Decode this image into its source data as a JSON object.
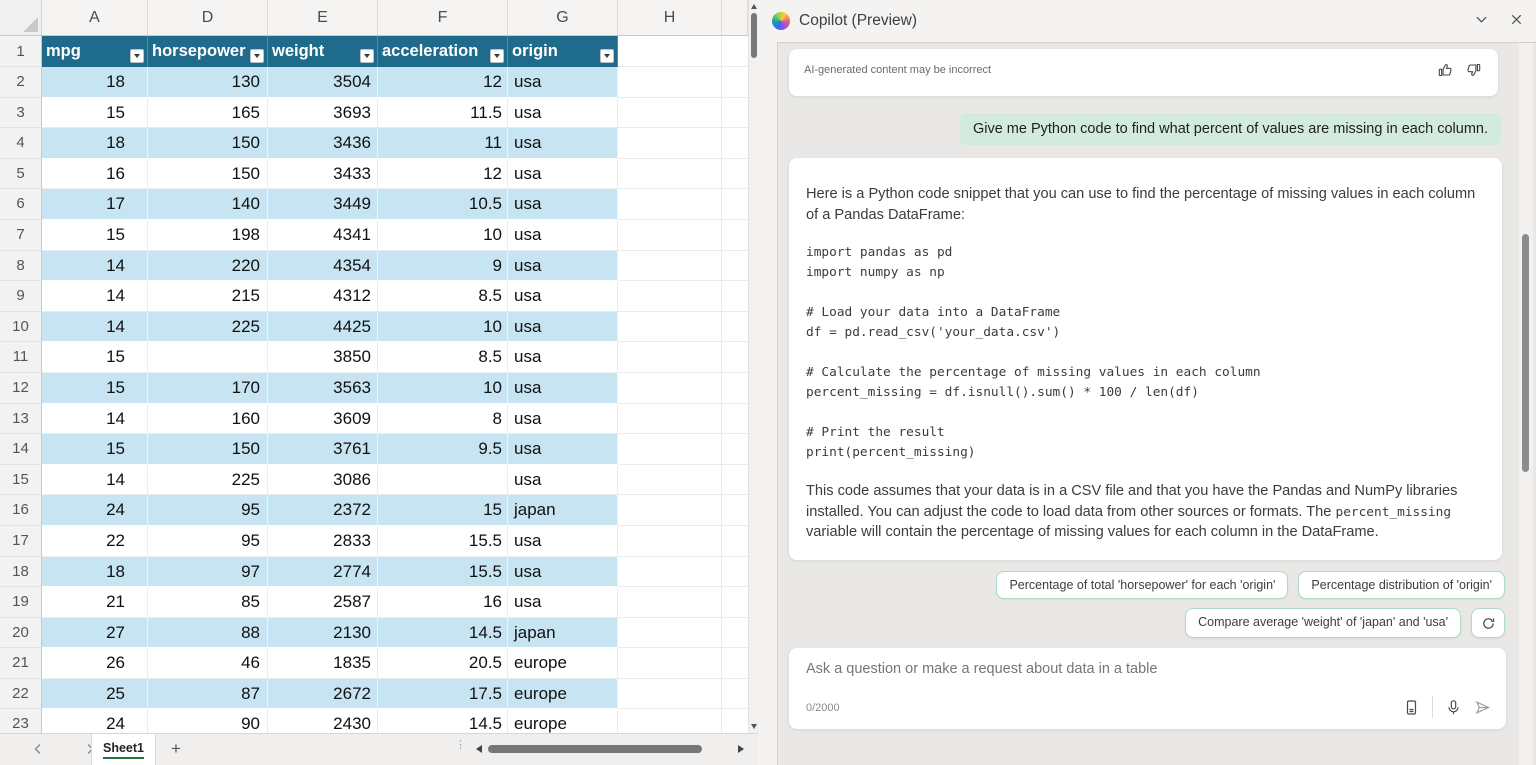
{
  "colors": {
    "header_teal": "#1F6B8C",
    "band_blue": "#C6E4F2",
    "bubble_green": "#D2EBDD",
    "chip_border": "#ABDCC0",
    "excel_green": "#217346"
  },
  "spreadsheet": {
    "column_letters": [
      "A",
      "D",
      "E",
      "F",
      "G",
      "H",
      ""
    ],
    "header_row_number": "1",
    "header_cells": [
      "mpg",
      "horsepower",
      "weight",
      "acceleration",
      "origin"
    ],
    "rows": [
      {
        "num": "2",
        "mpg": "18",
        "horsepower": "130",
        "weight": "3504",
        "acceleration": "12",
        "origin": "usa"
      },
      {
        "num": "3",
        "mpg": "15",
        "horsepower": "165",
        "weight": "3693",
        "acceleration": "11.5",
        "origin": "usa"
      },
      {
        "num": "4",
        "mpg": "18",
        "horsepower": "150",
        "weight": "3436",
        "acceleration": "11",
        "origin": "usa"
      },
      {
        "num": "5",
        "mpg": "16",
        "horsepower": "150",
        "weight": "3433",
        "acceleration": "12",
        "origin": "usa"
      },
      {
        "num": "6",
        "mpg": "17",
        "horsepower": "140",
        "weight": "3449",
        "acceleration": "10.5",
        "origin": "usa"
      },
      {
        "num": "7",
        "mpg": "15",
        "horsepower": "198",
        "weight": "4341",
        "acceleration": "10",
        "origin": "usa"
      },
      {
        "num": "8",
        "mpg": "14",
        "horsepower": "220",
        "weight": "4354",
        "acceleration": "9",
        "origin": "usa"
      },
      {
        "num": "9",
        "mpg": "14",
        "horsepower": "215",
        "weight": "4312",
        "acceleration": "8.5",
        "origin": "usa"
      },
      {
        "num": "10",
        "mpg": "14",
        "horsepower": "225",
        "weight": "4425",
        "acceleration": "10",
        "origin": "usa"
      },
      {
        "num": "11",
        "mpg": "15",
        "horsepower": "",
        "weight": "3850",
        "acceleration": "8.5",
        "origin": "usa"
      },
      {
        "num": "12",
        "mpg": "15",
        "horsepower": "170",
        "weight": "3563",
        "acceleration": "10",
        "origin": "usa"
      },
      {
        "num": "13",
        "mpg": "14",
        "horsepower": "160",
        "weight": "3609",
        "acceleration": "8",
        "origin": "usa"
      },
      {
        "num": "14",
        "mpg": "15",
        "horsepower": "150",
        "weight": "3761",
        "acceleration": "9.5",
        "origin": "usa"
      },
      {
        "num": "15",
        "mpg": "14",
        "horsepower": "225",
        "weight": "3086",
        "acceleration": "",
        "origin": "usa"
      },
      {
        "num": "16",
        "mpg": "24",
        "horsepower": "95",
        "weight": "2372",
        "acceleration": "15",
        "origin": "japan"
      },
      {
        "num": "17",
        "mpg": "22",
        "horsepower": "95",
        "weight": "2833",
        "acceleration": "15.5",
        "origin": "usa"
      },
      {
        "num": "18",
        "mpg": "18",
        "horsepower": "97",
        "weight": "2774",
        "acceleration": "15.5",
        "origin": "usa"
      },
      {
        "num": "19",
        "mpg": "21",
        "horsepower": "85",
        "weight": "2587",
        "acceleration": "16",
        "origin": "usa"
      },
      {
        "num": "20",
        "mpg": "27",
        "horsepower": "88",
        "weight": "2130",
        "acceleration": "14.5",
        "origin": "japan"
      },
      {
        "num": "21",
        "mpg": "26",
        "horsepower": "46",
        "weight": "1835",
        "acceleration": "20.5",
        "origin": "europe"
      },
      {
        "num": "22",
        "mpg": "25",
        "horsepower": "87",
        "weight": "2672",
        "acceleration": "17.5",
        "origin": "europe"
      },
      {
        "num": "23",
        "mpg": "24",
        "horsepower": "90",
        "weight": "2430",
        "acceleration": "14.5",
        "origin": "europe"
      }
    ],
    "sheet_tab": "Sheet1",
    "add_sheet": "+"
  },
  "copilot": {
    "title": "Copilot (Preview)",
    "disclaimer": "AI-generated content may be incorrect",
    "user_message": "Give me Python code to find what percent of values are missing in each column.",
    "response": {
      "intro": "Here is a Python code snippet that you can use to find the percentage of missing values in each column of a Pandas DataFrame:",
      "code_lines": [
        "import pandas as pd",
        "import numpy as np",
        "",
        "# Load your data into a DataFrame",
        "df = pd.read_csv('your_data.csv')",
        "",
        "# Calculate the percentage of missing values in each column",
        "percent_missing = df.isnull().sum() * 100 / len(df)",
        "",
        "# Print the result",
        "print(percent_missing)"
      ],
      "outro_before": "This code assumes that your data is in a CSV file and that you have the Pandas and NumPy libraries installed. You can adjust the code to load data from other sources or formats. The ",
      "outro_code": "percent_missing",
      "outro_after": " variable will contain the percentage of missing values for each column in the DataFrame."
    },
    "chips": [
      "Percentage of total 'horsepower' for each 'origin'",
      "Percentage distribution of 'origin'",
      "Compare average 'weight' of 'japan' and 'usa'"
    ],
    "input": {
      "placeholder": "Ask a question or make a request about data in a table",
      "counter": "0/2000"
    }
  }
}
